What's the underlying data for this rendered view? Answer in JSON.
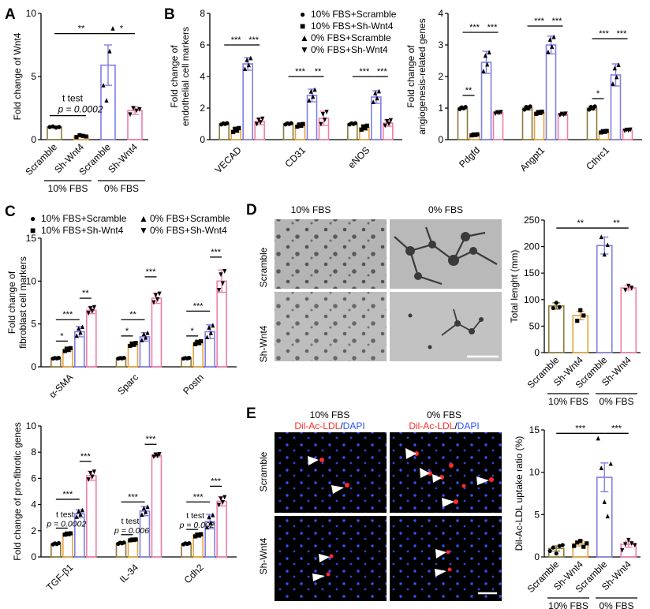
{
  "colors": {
    "c1": "#8c7a3c",
    "c2": "#e3a43f",
    "c3": "#7f7fe6",
    "c4": "#f07cab",
    "red": "#ff2a2a",
    "blue": "#2a52ff",
    "black": "#000000"
  },
  "legend": [
    "10% FBS+Scramble",
    "10% FBS+Sh-Wnt4",
    "0% FBS+Scramble",
    "0% FBS+Sh-Wnt4"
  ],
  "legend_symbols": [
    "●",
    "■",
    "▲",
    "▼"
  ],
  "panel_letters": {
    "A": "A",
    "B": "B",
    "C": "C",
    "D": "D",
    "E": "E"
  },
  "chart_data": [
    {
      "id": "A",
      "type": "bar",
      "ylabel": "Fold change of Wnt4",
      "ylim": [
        0,
        10
      ],
      "yticks": [
        0,
        5,
        10
      ],
      "categories": [
        "Scramble",
        "Sh-Wnt4",
        "Scramble",
        "Sh-Wnt4"
      ],
      "groups": [
        "10% FBS",
        "0% FBS"
      ],
      "values": [
        1.0,
        0.3,
        5.9,
        2.3
      ],
      "errors": [
        0.08,
        0.08,
        1.6,
        0.3
      ],
      "points": [
        [
          1.0,
          1.05,
          0.95,
          1.0
        ],
        [
          0.2,
          0.35,
          0.3,
          0.25
        ],
        [
          4.3,
          3.1,
          7.0,
          8.8
        ],
        [
          2.0,
          2.5,
          2.3,
          2.4
        ]
      ],
      "sig": [
        {
          "from": 0,
          "to": 2,
          "label": "**",
          "y": 8.4
        },
        {
          "from": 2,
          "to": 3,
          "label": "*",
          "y": 8.4
        }
      ],
      "annotations": [
        "t test",
        "p = 0.0002"
      ]
    },
    {
      "id": "B1",
      "type": "bar",
      "ylabel": "Fold change of endothelial cell markers",
      "ylim": [
        0,
        8
      ],
      "yticks": [
        0,
        2,
        4,
        6,
        8
      ],
      "categories": [
        "VECAD",
        "CD31",
        "eNOS"
      ],
      "series": [
        {
          "name": "10% FBS+Scramble",
          "values": [
            1.0,
            1.0,
            1.0
          ],
          "errors": [
            0.05,
            0.05,
            0.05
          ]
        },
        {
          "name": "10% FBS+Sh-Wnt4",
          "values": [
            0.6,
            0.9,
            0.75
          ],
          "errors": [
            0.15,
            0.1,
            0.15
          ]
        },
        {
          "name": "0% FBS+Scramble",
          "values": [
            4.8,
            2.8,
            2.7
          ],
          "errors": [
            0.4,
            0.4,
            0.4
          ]
        },
        {
          "name": "0% FBS+Sh-Wnt4",
          "values": [
            1.15,
            1.35,
            1.05
          ],
          "errors": [
            0.2,
            0.45,
            0.2
          ]
        }
      ],
      "sig": [
        {
          "cat": 0,
          "from": 0,
          "to": 2,
          "label": "***",
          "y": 6.0
        },
        {
          "cat": 0,
          "from": 2,
          "to": 3,
          "label": "***",
          "y": 6.0
        },
        {
          "cat": 1,
          "from": 0,
          "to": 2,
          "label": "***",
          "y": 4.0
        },
        {
          "cat": 1,
          "from": 2,
          "to": 3,
          "label": "**",
          "y": 4.0
        },
        {
          "cat": 2,
          "from": 0,
          "to": 2,
          "label": "***",
          "y": 4.0
        },
        {
          "cat": 2,
          "from": 2,
          "to": 3,
          "label": "***",
          "y": 4.0
        }
      ]
    },
    {
      "id": "B2",
      "type": "bar",
      "ylabel": "Fold change of angiogenesis-related genes",
      "ylim": [
        0,
        4
      ],
      "yticks": [
        0,
        1,
        2,
        3,
        4
      ],
      "categories": [
        "Pdgfd",
        "Angpt1",
        "Cthrc1"
      ],
      "series": [
        {
          "name": "10% FBS+Scramble",
          "values": [
            1.0,
            1.0,
            1.0
          ],
          "errors": [
            0.04,
            0.06,
            0.06
          ]
        },
        {
          "name": "10% FBS+Sh-Wnt4",
          "values": [
            0.15,
            0.85,
            0.25
          ],
          "errors": [
            0.02,
            0.04,
            0.03
          ]
        },
        {
          "name": "0% FBS+Scramble",
          "values": [
            2.45,
            3.0,
            2.05
          ],
          "errors": [
            0.35,
            0.28,
            0.35
          ]
        },
        {
          "name": "0% FBS+Sh-Wnt4",
          "values": [
            0.85,
            0.8,
            0.3
          ],
          "errors": [
            0.03,
            0.03,
            0.02
          ]
        }
      ],
      "sig": [
        {
          "cat": 0,
          "from": 0,
          "to": 1,
          "label": "**",
          "y": 1.4
        },
        {
          "cat": 0,
          "from": 0,
          "to": 2,
          "label": "***",
          "y": 3.4
        },
        {
          "cat": 0,
          "from": 2,
          "to": 3,
          "label": "***",
          "y": 3.4
        },
        {
          "cat": 1,
          "from": 0,
          "to": 2,
          "label": "***",
          "y": 3.6
        },
        {
          "cat": 1,
          "from": 2,
          "to": 3,
          "label": "***",
          "y": 3.6
        },
        {
          "cat": 2,
          "from": 0,
          "to": 1,
          "label": "*",
          "y": 1.3
        },
        {
          "cat": 2,
          "from": 0,
          "to": 2,
          "label": "***",
          "y": 3.2
        },
        {
          "cat": 2,
          "from": 2,
          "to": 3,
          "label": "***",
          "y": 3.2
        }
      ]
    },
    {
      "id": "C1",
      "type": "bar",
      "ylabel": "Fold change of fibroblast cell markers",
      "ylim": [
        0,
        15
      ],
      "yticks": [
        0,
        5,
        10,
        15
      ],
      "categories": [
        "α-SMA",
        "Sparc",
        "Postn"
      ],
      "series": [
        {
          "name": "10% FBS+Scramble",
          "values": [
            1.0,
            1.0,
            1.0
          ],
          "errors": [
            0.05,
            0.05,
            0.05
          ]
        },
        {
          "name": "10% FBS+Sh-Wnt4",
          "values": [
            2.0,
            2.6,
            2.8
          ],
          "errors": [
            0.2,
            0.2,
            0.2
          ]
        },
        {
          "name": "0% FBS+Scramble",
          "values": [
            4.1,
            3.5,
            4.1
          ],
          "errors": [
            0.6,
            0.5,
            0.8
          ]
        },
        {
          "name": "0% FBS+Sh-Wnt4",
          "values": [
            6.6,
            8.0,
            10.0
          ],
          "errors": [
            0.4,
            0.6,
            1.3
          ]
        }
      ],
      "sig": [
        {
          "cat": 0,
          "from": 0,
          "to": 1,
          "label": "*",
          "y": 3.0
        },
        {
          "cat": 0,
          "from": 0,
          "to": 2,
          "label": "***",
          "y": 5.5
        },
        {
          "cat": 0,
          "from": 2,
          "to": 3,
          "label": "**",
          "y": 8.0
        },
        {
          "cat": 1,
          "from": 0,
          "to": 1,
          "label": "*",
          "y": 3.6
        },
        {
          "cat": 1,
          "from": 0,
          "to": 2,
          "label": "**",
          "y": 5.5
        },
        {
          "cat": 1,
          "from": 2,
          "to": 3,
          "label": "***",
          "y": 10.5
        },
        {
          "cat": 2,
          "from": 0,
          "to": 1,
          "label": "*",
          "y": 3.6
        },
        {
          "cat": 2,
          "from": 0,
          "to": 2,
          "label": "***",
          "y": 6.5
        },
        {
          "cat": 2,
          "from": 2,
          "to": 3,
          "label": "***",
          "y": 12.8
        }
      ]
    },
    {
      "id": "C2",
      "type": "bar",
      "ylabel": "Fold change of pro-fibrotic genes",
      "ylim": [
        0,
        10
      ],
      "yticks": [
        0,
        2,
        4,
        6,
        8,
        10
      ],
      "categories": [
        "TGF-β1",
        "IL-34",
        "Cdh2"
      ],
      "series": [
        {
          "name": "10% FBS+Scramble",
          "values": [
            1.0,
            1.05,
            1.0
          ],
          "errors": [
            0.06,
            0.06,
            0.05
          ]
        },
        {
          "name": "10% FBS+Sh-Wnt4",
          "values": [
            1.75,
            1.3,
            1.65
          ],
          "errors": [
            0.06,
            0.04,
            0.1
          ]
        },
        {
          "name": "0% FBS+Scramble",
          "values": [
            3.3,
            3.5,
            2.7
          ],
          "errors": [
            0.3,
            0.35,
            0.55
          ]
        },
        {
          "name": "0% FBS+Sh-Wnt4",
          "values": [
            6.2,
            7.75,
            4.25
          ],
          "errors": [
            0.35,
            0.12,
            0.35
          ]
        }
      ],
      "sig": [
        {
          "cat": 0,
          "from": 0,
          "to": 1,
          "label": "t test",
          "p": "p = 0.0002",
          "y": 2.2
        },
        {
          "cat": 0,
          "from": 0,
          "to": 2,
          "label": "***",
          "y": 4.4
        },
        {
          "cat": 0,
          "from": 2,
          "to": 3,
          "label": "***",
          "y": 7.3
        },
        {
          "cat": 1,
          "from": 0,
          "to": 1,
          "label": "t test",
          "p": "p = 0.006",
          "y": 1.7
        },
        {
          "cat": 1,
          "from": 0,
          "to": 2,
          "label": "***",
          "y": 4.2
        },
        {
          "cat": 1,
          "from": 2,
          "to": 3,
          "label": "***",
          "y": 8.6
        },
        {
          "cat": 2,
          "from": 0,
          "to": 1,
          "label": "t test",
          "p": "p = 0.002",
          "y": 2.1
        },
        {
          "cat": 2,
          "from": 0,
          "to": 2,
          "label": "***",
          "y": 4.2
        },
        {
          "cat": 2,
          "from": 2,
          "to": 3,
          "label": "***",
          "y": 5.4
        }
      ]
    },
    {
      "id": "D",
      "type": "bar",
      "ylabel": "Total lenght (mm)",
      "ylim": [
        0,
        250
      ],
      "yticks": [
        0,
        50,
        100,
        150,
        200,
        250
      ],
      "categories": [
        "Scramble",
        "Sh-Wnt4",
        "Scramble",
        "Sh-Wnt4"
      ],
      "groups": [
        "10% FBS",
        "0% FBS"
      ],
      "values": [
        88,
        70,
        202,
        122
      ],
      "errors": [
        6,
        8,
        16,
        4
      ],
      "points": [
        [
          84,
          94,
          86
        ],
        [
          60,
          80,
          70
        ],
        [
          218,
          185,
          203
        ],
        [
          118,
          126,
          122
        ]
      ],
      "sig": [
        {
          "from": 0,
          "to": 2,
          "label": "**",
          "y": 235
        },
        {
          "from": 2,
          "to": 3,
          "label": "**",
          "y": 235
        }
      ]
    },
    {
      "id": "E",
      "type": "bar",
      "ylabel": "Dil-Ac-LDL uptake ratio (%)",
      "ylim": [
        0,
        15
      ],
      "yticks": [
        0,
        5,
        10,
        15
      ],
      "categories": [
        "Scramble",
        "Sh-Wnt4",
        "Scramble",
        "Sh-Wnt4"
      ],
      "groups": [
        "10% FBS",
        "0% FBS"
      ],
      "values": [
        1.0,
        1.6,
        9.4,
        1.5
      ],
      "errors": [
        0.3,
        0.3,
        1.7,
        0.35
      ],
      "points": [
        [
          0.7,
          1.1,
          0.4,
          1.3,
          1.4
        ],
        [
          1.3,
          1.7,
          1.9,
          1.2,
          1.6
        ],
        [
          14.0,
          10.5,
          6.5,
          4.8,
          11.0
        ],
        [
          0.8,
          1.5,
          2.0,
          1.6,
          1.4
        ]
      ],
      "sig": [
        {
          "from": 0,
          "to": 2,
          "label": "***",
          "y": 14.6
        },
        {
          "from": 2,
          "to": 3,
          "label": "***",
          "y": 14.6
        }
      ]
    }
  ],
  "panel_D": {
    "col_headers": [
      "10% FBS",
      "0% FBS"
    ],
    "row_labels": [
      "Scramble",
      "Sh-Wnt4"
    ]
  },
  "panel_E": {
    "col_headers": [
      "10% FBS",
      "0% FBS"
    ],
    "stain": {
      "red": "Dil-Ac-LDL",
      "sep": "/",
      "blue": "DAPI"
    },
    "row_labels": [
      "Scramble",
      "Sh-Wnt4"
    ]
  }
}
